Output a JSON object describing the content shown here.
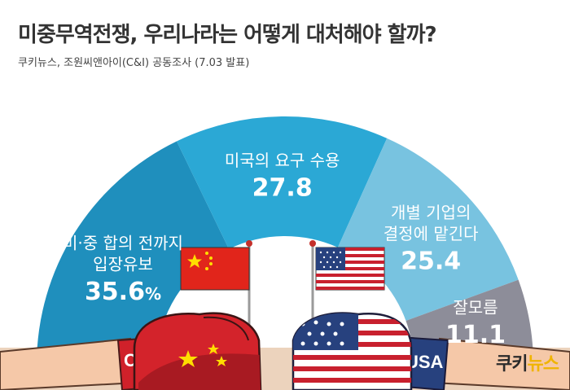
{
  "header": {
    "title": "미중무역전쟁, 우리나라는 어떻게 대처해야 할까?",
    "subtitle": "쿠키뉴스, 조원씨앤아이(C&I) 공동조사 (7.03 발표)"
  },
  "chart_data": {
    "type": "pie",
    "layout": "half-donut",
    "unit": "%",
    "slices": [
      {
        "label_lines": [
          "미·중 합의 전까지",
          "입장유보"
        ],
        "value": 35.6,
        "value_text": "35.6",
        "value_suffix": "%",
        "color": "#1f8fbd"
      },
      {
        "label_lines": [
          "미국의 요구 수용"
        ],
        "value": 27.8,
        "value_text": "27.8",
        "value_suffix": "",
        "color": "#2ba8d5"
      },
      {
        "label_lines": [
          "개별 기업의",
          "결정에 맡긴다"
        ],
        "value": 25.4,
        "value_text": "25.4",
        "value_suffix": "",
        "color": "#78c3e0"
      },
      {
        "label_lines": [
          "잘모름"
        ],
        "value": 11.1,
        "value_text": "11.1",
        "value_suffix": "",
        "color": "#8d8d99"
      }
    ]
  },
  "illustration": {
    "left_glove_text": "CHINA",
    "right_glove_text": "USA"
  },
  "branding": {
    "logo_text": "쿠키뉴스",
    "logo_color_primary": "#2b2b2b",
    "logo_color_accent": "#f0b400"
  }
}
